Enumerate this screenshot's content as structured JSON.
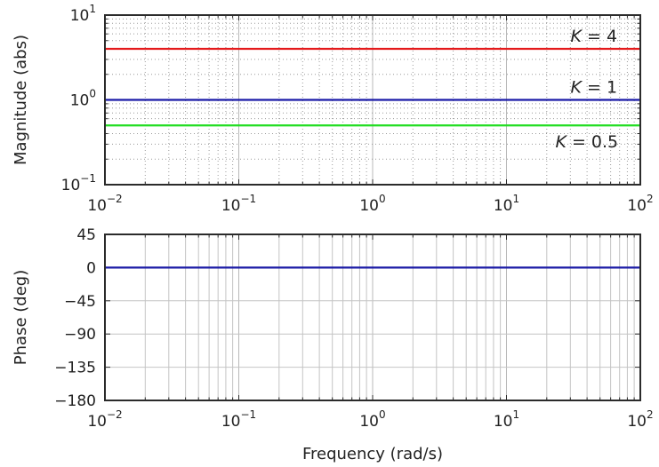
{
  "chart_data": [
    {
      "type": "line",
      "xscale": "log",
      "yscale": "log",
      "xlim": [
        0.01,
        100
      ],
      "ylim": [
        0.1,
        10
      ],
      "xlabel": "",
      "ylabel": "Magnitude (abs)",
      "grid": "major-and-minor",
      "x_ticks": [
        {
          "base": "10",
          "exp": "−2"
        },
        {
          "base": "10",
          "exp": "−1"
        },
        {
          "base": "10",
          "exp": "0"
        },
        {
          "base": "10",
          "exp": "1"
        },
        {
          "base": "10",
          "exp": "2"
        }
      ],
      "y_ticks": [
        {
          "base": "10",
          "exp": "−1",
          "value": 0.1
        },
        {
          "base": "10",
          "exp": "0",
          "value": 1
        },
        {
          "base": "10",
          "exp": "1",
          "value": 10
        }
      ],
      "series": [
        {
          "x": [
            0.01,
            100
          ],
          "values": [
            4,
            4
          ],
          "color": "#e41a1c"
        },
        {
          "x": [
            0.01,
            100
          ],
          "values": [
            1,
            1
          ],
          "color": "#1a1aa6"
        },
        {
          "x": [
            0.01,
            100
          ],
          "values": [
            0.5,
            0.5
          ],
          "color": "#22dd22"
        }
      ],
      "annotations": [
        {
          "var": "K",
          "op": " = ",
          "val": "4",
          "x": 45,
          "y": 4
        },
        {
          "var": "K",
          "op": " = ",
          "val": "1",
          "x": 45,
          "y": 1
        },
        {
          "var": "K",
          "op": " = ",
          "val": "0.5",
          "x": 45,
          "y": 0.5
        }
      ]
    },
    {
      "type": "line",
      "xscale": "log",
      "xlim": [
        0.01,
        100
      ],
      "ylim": [
        -180,
        45
      ],
      "xlabel": "Frequency (rad/s)",
      "ylabel": "Phase (deg)",
      "grid": "major-and-minor-x",
      "x_ticks": [
        {
          "base": "10",
          "exp": "−2"
        },
        {
          "base": "10",
          "exp": "−1"
        },
        {
          "base": "10",
          "exp": "0"
        },
        {
          "base": "10",
          "exp": "1"
        },
        {
          "base": "10",
          "exp": "2"
        }
      ],
      "y_ticks": [
        {
          "label": "45",
          "value": 45
        },
        {
          "label": "0",
          "value": 0
        },
        {
          "label": "−45",
          "value": -45
        },
        {
          "label": "−90",
          "value": -90
        },
        {
          "label": "−135",
          "value": -135
        },
        {
          "label": "−180",
          "value": -180
        }
      ],
      "series": [
        {
          "x": [
            0.01,
            100
          ],
          "values": [
            0,
            0
          ],
          "color": "#1a1aa6"
        }
      ]
    }
  ]
}
